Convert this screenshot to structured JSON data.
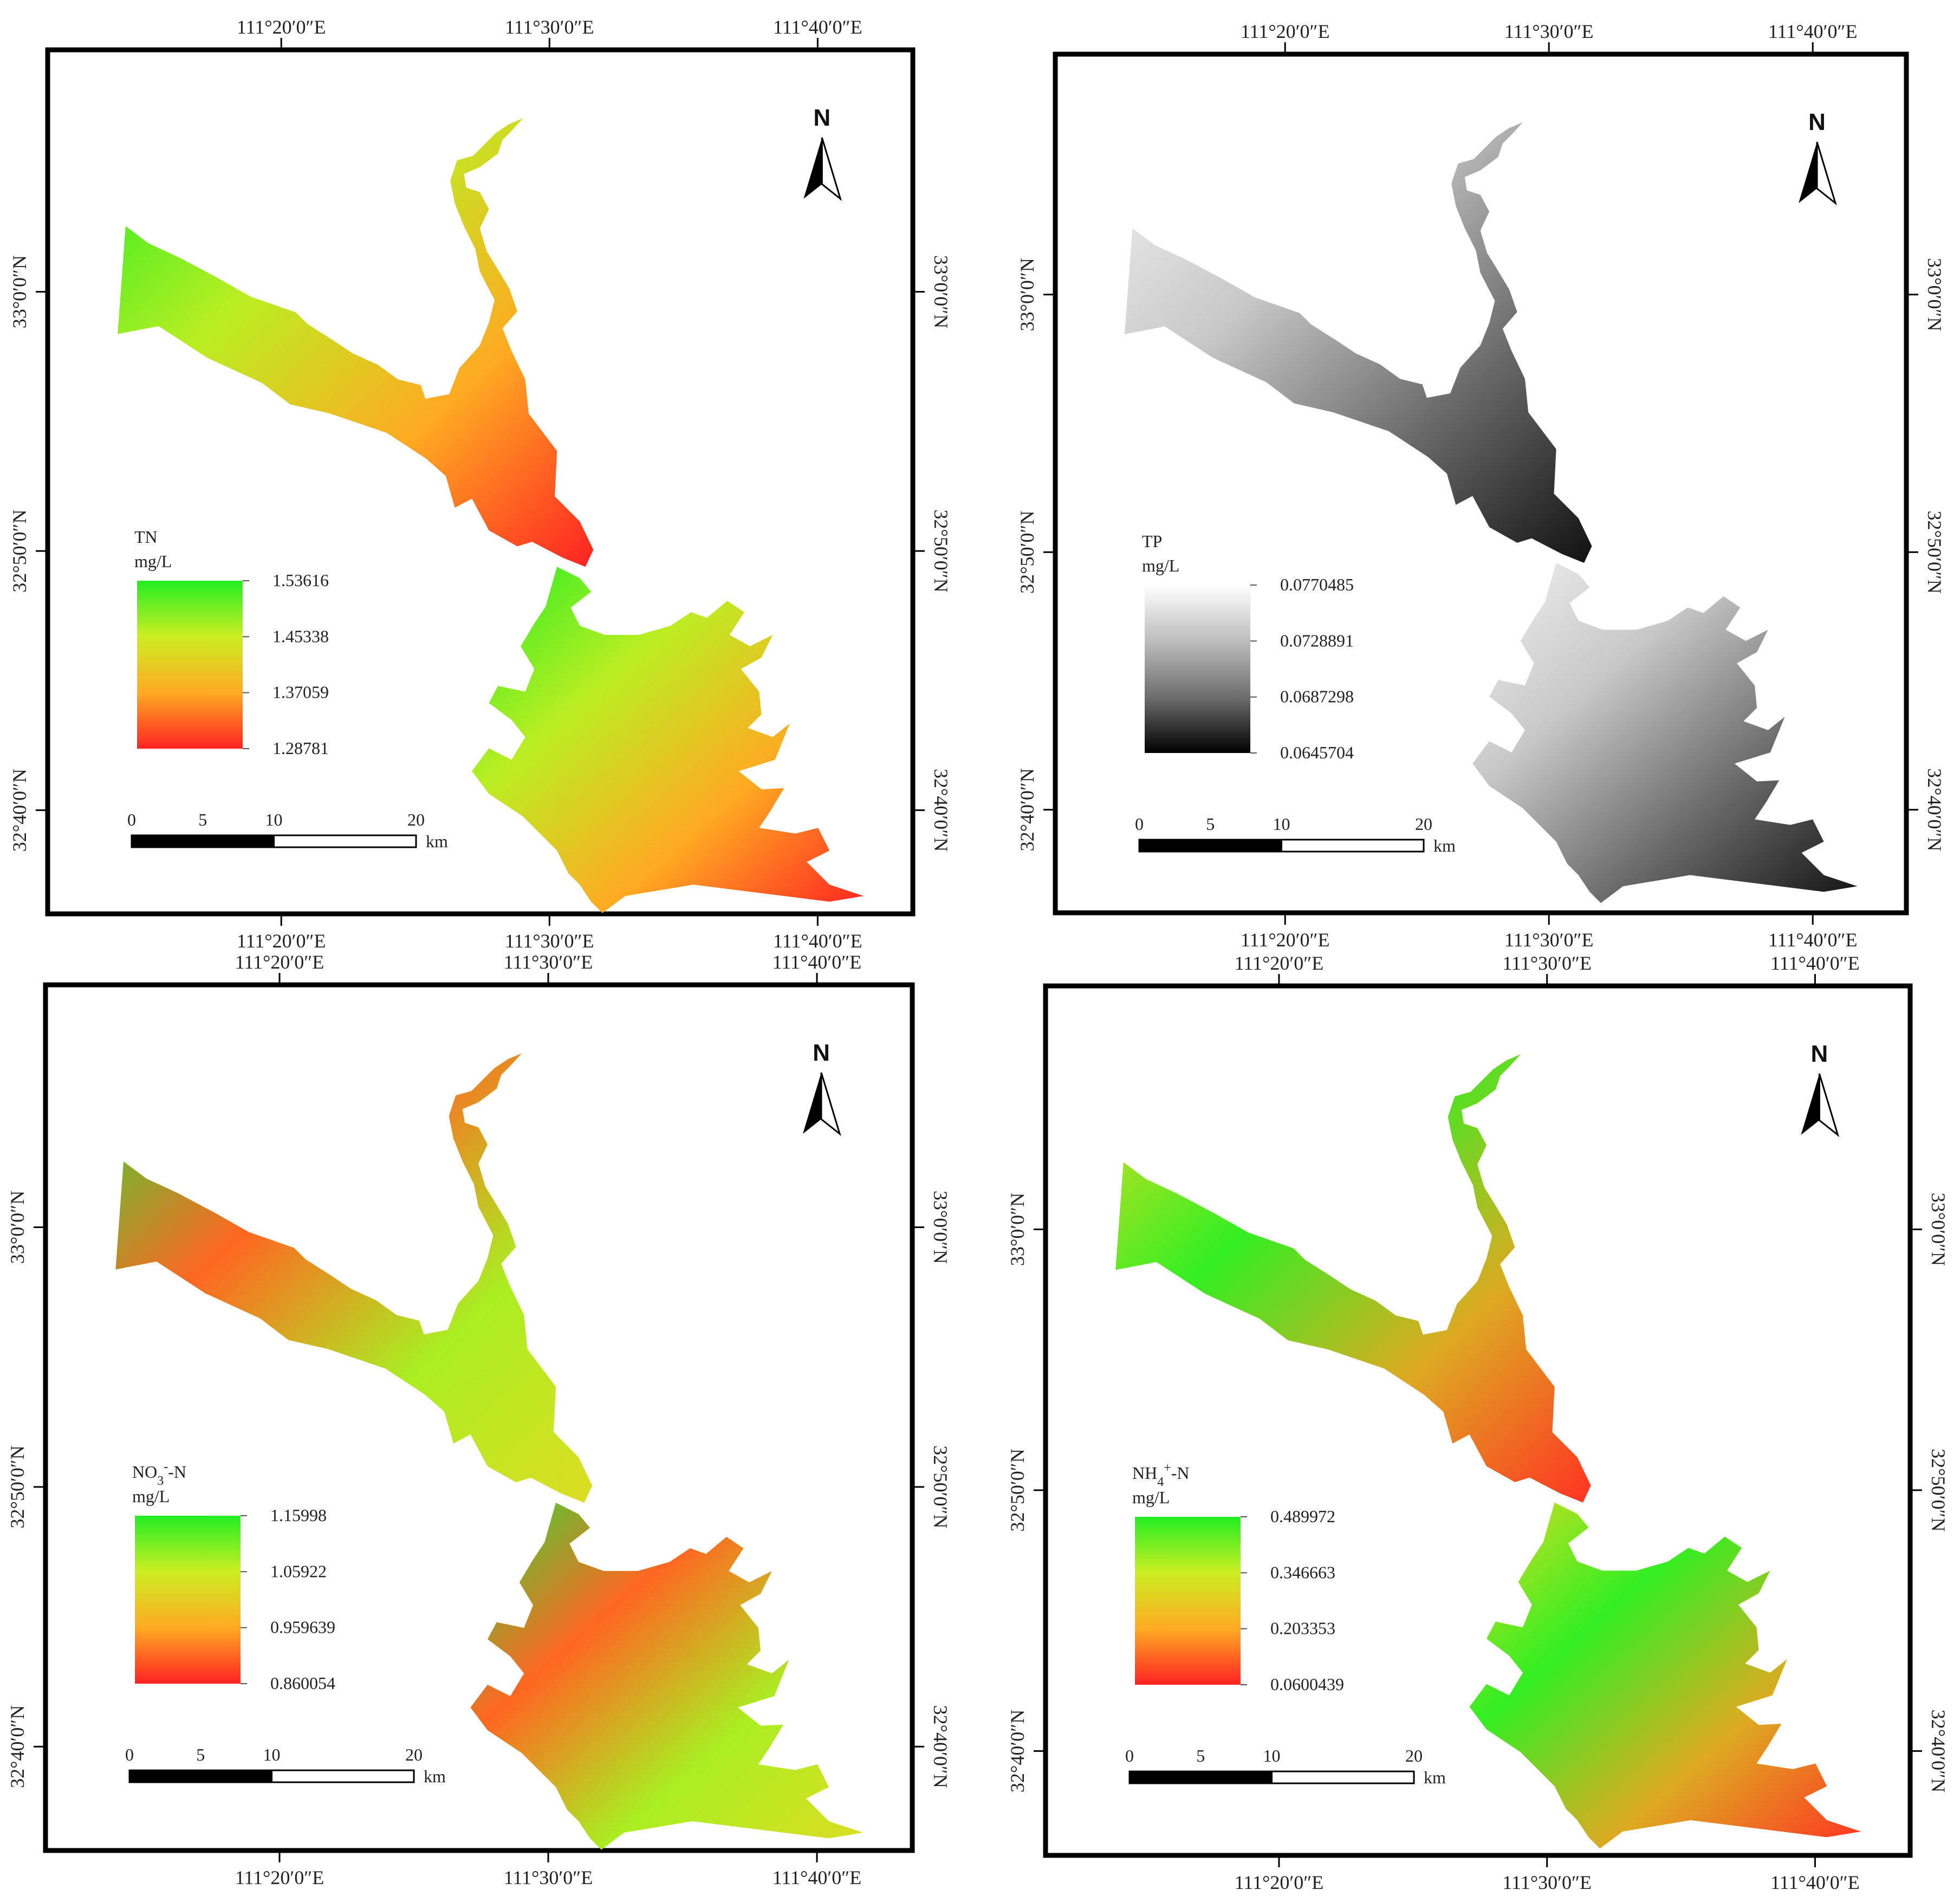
{
  "panels": [
    {
      "id": "tn",
      "legend": {
        "title": "TN",
        "title_sub": "",
        "title_sup": "",
        "title_suffix": "",
        "unit": "mg/L",
        "labels": [
          "1.53616",
          "1.45338",
          "1.37059",
          "1.28781"
        ],
        "colors": [
          "#22ee22",
          "#ccee22",
          "#ffaa22",
          "#ff2222"
        ]
      },
      "field": {
        "colors": [
          "#22ee22",
          "#bbee22",
          "#ffaa22",
          "#ff2222"
        ]
      },
      "top_labels": [
        "111°20′0″E",
        "111°30′0″E",
        "111°40′0″E"
      ],
      "bottom_labels": [
        "111°20′0″E",
        "111°30′0″E",
        "111°40′0″E"
      ],
      "left_labels": [
        "33°0′0″N",
        "32°50′0″N",
        "32°40′0″N"
      ],
      "right_labels": [
        "33°0′0″N",
        "32°50′0″N",
        "32°40′0″N"
      ],
      "scalebar": {
        "ticks": [
          "0",
          "5",
          "10",
          "20"
        ],
        "unit": "km"
      },
      "north": "N"
    },
    {
      "id": "tp",
      "legend": {
        "title": "TP",
        "title_sub": "",
        "title_sup": "",
        "title_suffix": "",
        "unit": "mg/L",
        "labels": [
          "0.0770485",
          "0.0728891",
          "0.0687298",
          "0.0645704"
        ],
        "colors": [
          "#ffffff",
          "#bdbdbd",
          "#6e6e6e",
          "#000000"
        ]
      },
      "field": {
        "colors": [
          "#f2f2f2",
          "#c8c8c8",
          "#6a6a6a",
          "#111111"
        ]
      },
      "top_labels": [
        "111°20′0″E",
        "111°30′0″E",
        "111°40′0″E"
      ],
      "bottom_labels": [
        "111°20′0″E",
        "111°30′0″E",
        "111°40′0″E"
      ],
      "left_labels": [
        "33°0′0″N",
        "32°50′0″N",
        "32°40′0″N"
      ],
      "right_labels": [
        "33°0′0″N",
        "32°50′0″N",
        "32°40′0″N"
      ],
      "scalebar": {
        "ticks": [
          "0",
          "5",
          "10",
          "20"
        ],
        "unit": "km"
      },
      "north": "N"
    },
    {
      "id": "no3",
      "legend": {
        "title": "NO",
        "title_sub": "3",
        "title_sup": "-",
        "title_suffix": "-N",
        "unit": "mg/L",
        "labels": [
          "1.15998",
          "1.05922",
          "0.959639",
          "0.860054"
        ],
        "colors": [
          "#22ee22",
          "#ccee22",
          "#ffaa22",
          "#ff2222"
        ]
      },
      "field": {
        "colors": [
          "#33dd33",
          "#ff6622",
          "#aaee22",
          "#dddd22"
        ]
      },
      "top_labels": [
        "111°20′0″E",
        "111°30′0″E",
        "111°40′0″E"
      ],
      "bottom_labels": [
        "111°20′0″E",
        "111°30′0″E",
        "111°40′0″E"
      ],
      "left_labels": [
        "33°0′0″N",
        "32°50′0″N",
        "32°40′0″N"
      ],
      "right_labels": [
        "33°0′0″N",
        "32°50′0″N",
        "32°40′0″N"
      ],
      "scalebar": {
        "ticks": [
          "0",
          "5",
          "10",
          "20"
        ],
        "unit": "km"
      },
      "north": "N"
    },
    {
      "id": "nh4",
      "legend": {
        "title": "NH",
        "title_sub": "4",
        "title_sup": "+",
        "title_suffix": "-N",
        "unit": "mg/L",
        "labels": [
          "0.489972",
          "0.346663",
          "0.203353",
          "0.0600439"
        ],
        "colors": [
          "#22ee22",
          "#ccee22",
          "#ffaa22",
          "#ff2222"
        ]
      },
      "field": {
        "colors": [
          "#dddd22",
          "#33ee22",
          "#ddaa22",
          "#ff3322"
        ]
      },
      "top_labels": [
        "111°20′0″E",
        "111°30′0″E",
        "111°40′0″E"
      ],
      "bottom_labels": [
        "111°20′0″E",
        "111°30′0″E",
        "111°40′0″E"
      ],
      "left_labels": [
        "33°0′0″N",
        "32°50′0″N",
        "32°40′0″N"
      ],
      "right_labels": [
        "33°0′0″N",
        "32°50′0″N",
        "32°40′0″N"
      ],
      "scalebar": {
        "ticks": [
          "0",
          "5",
          "10",
          "20"
        ],
        "unit": "km"
      },
      "north": "N"
    }
  ]
}
